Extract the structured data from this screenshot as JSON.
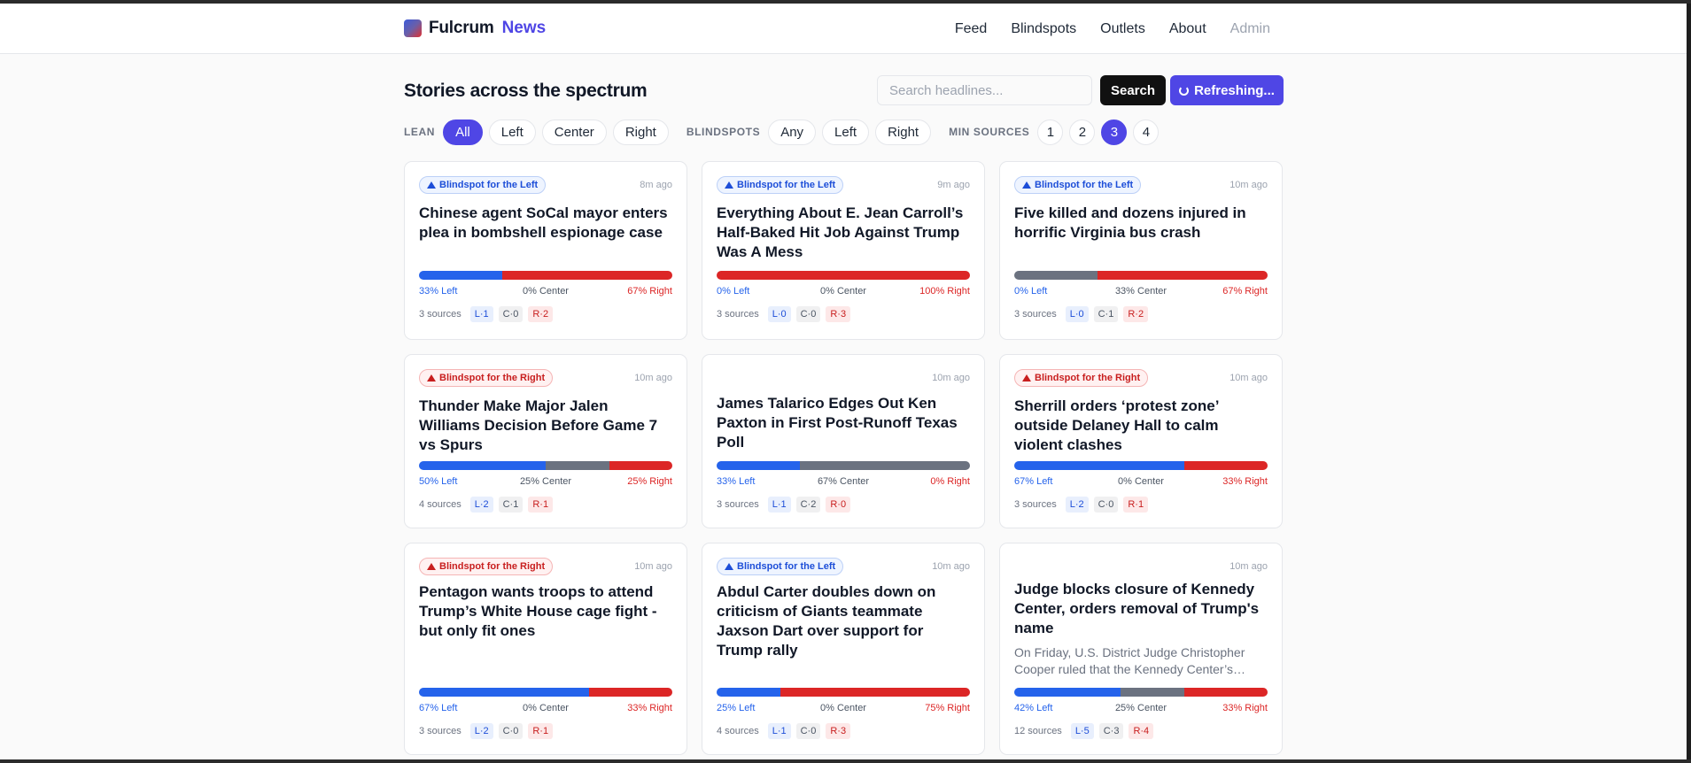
{
  "brand": {
    "name": "Fulcrum",
    "accent": "News"
  },
  "nav": {
    "items": [
      "Feed",
      "Blindspots",
      "Outlets",
      "About",
      "Admin"
    ]
  },
  "page": {
    "title": "Stories across the spectrum"
  },
  "search": {
    "placeholder": "Search headlines...",
    "button": "Search",
    "refresh": "Refreshing..."
  },
  "filters": {
    "lean_label": "LEAN",
    "lean": [
      "All",
      "Left",
      "Center",
      "Right"
    ],
    "lean_active": "All",
    "blindspots_label": "BLINDSPOTS",
    "blindspots": [
      "Any",
      "Left",
      "Right"
    ],
    "min_sources_label": "MIN SOURCES",
    "min_sources": [
      "1",
      "2",
      "3",
      "4"
    ],
    "min_sources_active": "3"
  },
  "colors": {
    "left": "#2563eb",
    "center": "#6b7280",
    "right": "#dc2626",
    "accent": "#4f46e5"
  },
  "cards": [
    {
      "badge": "Blindspot for the Left",
      "badge_side": "left",
      "time": "8m ago",
      "title": "Chinese agent SoCal mayor enters plea in bombshell espionage case",
      "summary": "",
      "left_pct": 33,
      "center_pct": 0,
      "right_pct": 67,
      "left_label": "33% Left",
      "center_label": "0% Center",
      "right_label": "67% Right",
      "sources": "3 sources",
      "l": "L·1",
      "c": "C·0",
      "r": "R·2"
    },
    {
      "badge": "Blindspot for the Left",
      "badge_side": "left",
      "time": "9m ago",
      "title": "Everything About E. Jean Carroll’s Half-Baked Hit Job Against Trump Was A Mess",
      "summary": "",
      "left_pct": 0,
      "center_pct": 0,
      "right_pct": 100,
      "left_label": "0% Left",
      "center_label": "0% Center",
      "right_label": "100% Right",
      "sources": "3 sources",
      "l": "L·0",
      "c": "C·0",
      "r": "R·3"
    },
    {
      "badge": "Blindspot for the Left",
      "badge_side": "left",
      "time": "10m ago",
      "title": "Five killed and dozens injured in horrific Virginia bus crash",
      "summary": "",
      "left_pct": 0,
      "center_pct": 33,
      "right_pct": 67,
      "left_label": "0% Left",
      "center_label": "33% Center",
      "right_label": "67% Right",
      "sources": "3 sources",
      "l": "L·0",
      "c": "C·1",
      "r": "R·2"
    },
    {
      "badge": "Blindspot for the Right",
      "badge_side": "right",
      "time": "10m ago",
      "title": "Thunder Make Major Jalen Williams Decision Before Game 7 vs Spurs",
      "summary": "",
      "left_pct": 50,
      "center_pct": 25,
      "right_pct": 25,
      "left_label": "50% Left",
      "center_label": "25% Center",
      "right_label": "25% Right",
      "sources": "4 sources",
      "l": "L·2",
      "c": "C·1",
      "r": "R·1"
    },
    {
      "badge": "",
      "badge_side": "",
      "time": "10m ago",
      "title": "James Talarico Edges Out Ken Paxton in First Post-Runoff Texas Poll",
      "summary": "",
      "left_pct": 33,
      "center_pct": 67,
      "right_pct": 0,
      "left_label": "33% Left",
      "center_label": "67% Center",
      "right_label": "0% Right",
      "sources": "3 sources",
      "l": "L·1",
      "c": "C·2",
      "r": "R·0"
    },
    {
      "badge": "Blindspot for the Right",
      "badge_side": "right",
      "time": "10m ago",
      "title": "Sherrill orders ‘protest zone’ outside Delaney Hall to calm violent clashes",
      "summary": "",
      "left_pct": 67,
      "center_pct": 0,
      "right_pct": 33,
      "left_label": "67% Left",
      "center_label": "0% Center",
      "right_label": "33% Right",
      "sources": "3 sources",
      "l": "L·2",
      "c": "C·0",
      "r": "R·1"
    },
    {
      "badge": "Blindspot for the Right",
      "badge_side": "right",
      "time": "10m ago",
      "title": "Pentagon wants troops to attend Trump’s White House cage fight - but only fit ones",
      "summary": "",
      "left_pct": 67,
      "center_pct": 0,
      "right_pct": 33,
      "left_label": "67% Left",
      "center_label": "0% Center",
      "right_label": "33% Right",
      "sources": "3 sources",
      "l": "L·2",
      "c": "C·0",
      "r": "R·1"
    },
    {
      "badge": "Blindspot for the Left",
      "badge_side": "left",
      "time": "10m ago",
      "title": "Abdul Carter doubles down on criticism of Giants teammate Jaxson Dart over support for Trump rally",
      "summary": "",
      "left_pct": 25,
      "center_pct": 0,
      "right_pct": 75,
      "left_label": "25% Left",
      "center_label": "0% Center",
      "right_label": "75% Right",
      "sources": "4 sources",
      "l": "L·1",
      "c": "C·0",
      "r": "R·3"
    },
    {
      "badge": "",
      "badge_side": "",
      "time": "10m ago",
      "title": "Judge blocks closure of Kennedy Center, orders removal of Trump's name",
      "summary": "On Friday, U.S. District Judge Christopher Cooper ruled that the Kennedy Center’s…",
      "left_pct": 42,
      "center_pct": 25,
      "right_pct": 33,
      "left_label": "42% Left",
      "center_label": "25% Center",
      "right_label": "33% Right",
      "sources": "12 sources",
      "l": "L·5",
      "c": "C·3",
      "r": "R·4"
    }
  ]
}
